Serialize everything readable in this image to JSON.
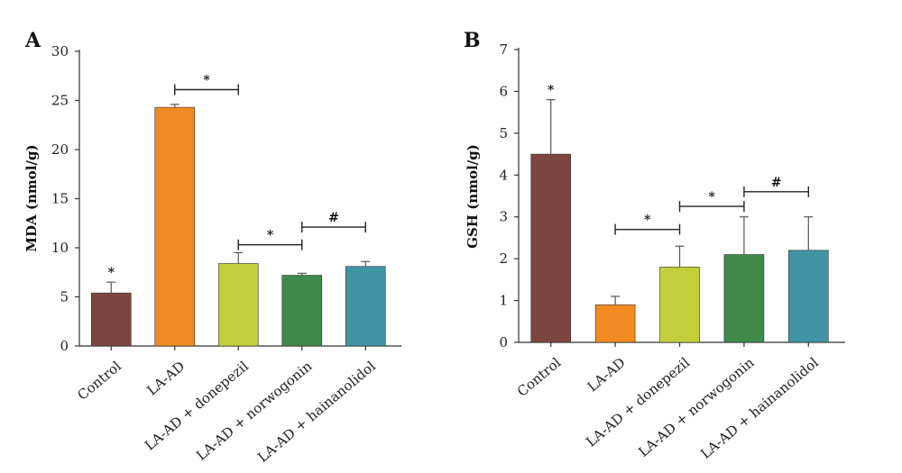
{
  "chart_data": [
    {
      "panel": "A",
      "type": "bar",
      "ylabel": "MDA (nmol/g)",
      "ylim": [
        0,
        30
      ],
      "yticks": [
        0,
        5,
        10,
        15,
        20,
        25,
        30
      ],
      "categories": [
        "Control",
        "LA-AD",
        "LA-AD + donepezil",
        "LA-AD + norwogonin",
        "LA-AD + hainanolidol"
      ],
      "values": [
        5.4,
        24.3,
        8.4,
        7.2,
        8.1
      ],
      "errors": [
        1.1,
        0.3,
        1.1,
        0.2,
        0.5
      ],
      "colors": [
        "#7d4540",
        "#f28a22",
        "#c3cf3a",
        "#3f8a4a",
        "#3f93a3"
      ],
      "annotations": [
        {
          "type": "star",
          "bar": 0,
          "label": "*"
        }
      ],
      "brackets": [
        {
          "from": 1,
          "to": 2,
          "y": 26.1,
          "label": "*"
        },
        {
          "from": 2,
          "to": 3,
          "y": 10.3,
          "label": "*"
        },
        {
          "from": 3,
          "to": 4,
          "y": 12.1,
          "label": "#"
        }
      ]
    },
    {
      "panel": "B",
      "type": "bar",
      "ylabel": "GSH (nmol/g)",
      "ylim": [
        0,
        7
      ],
      "yticks": [
        0,
        1,
        2,
        3,
        4,
        5,
        6,
        7
      ],
      "categories": [
        "Control",
        "LA-AD",
        "LA-AD + donepezil",
        "LA-AD + norwogonin",
        "LA-AD + hainanolidol"
      ],
      "values": [
        4.5,
        0.9,
        1.8,
        2.1,
        2.2
      ],
      "errors": [
        1.3,
        0.2,
        0.5,
        0.9,
        0.8
      ],
      "colors": [
        "#7d4540",
        "#f28a22",
        "#c3cf3a",
        "#3f8a4a",
        "#3f93a3"
      ],
      "annotations": [
        {
          "type": "star",
          "bar": 0,
          "label": "*"
        }
      ],
      "brackets": [
        {
          "from": 1,
          "to": 2,
          "y": 2.7,
          "label": "*"
        },
        {
          "from": 2,
          "to": 3,
          "y": 3.25,
          "label": "*"
        },
        {
          "from": 3,
          "to": 4,
          "y": 3.6,
          "label": "#"
        }
      ]
    }
  ]
}
